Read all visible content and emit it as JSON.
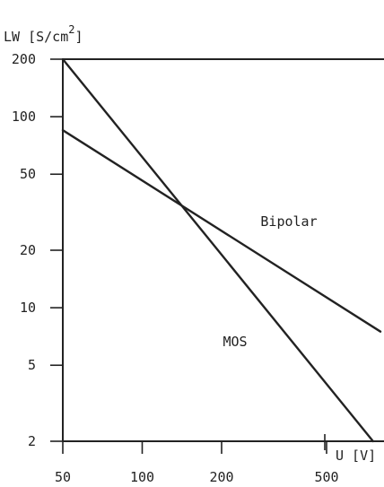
{
  "chart_data": {
    "type": "line",
    "xscale": "log",
    "yscale": "log",
    "xlim": [
      50,
      800
    ],
    "ylim": [
      2,
      200
    ],
    "xticks": [
      50,
      100,
      200,
      500
    ],
    "xtick_labels": [
      "50",
      "100",
      "200",
      "500"
    ],
    "yticks": [
      2,
      5,
      10,
      20,
      50,
      100,
      200
    ],
    "ytick_labels": [
      "2",
      "5",
      "10",
      "20",
      "50",
      "100",
      "200"
    ],
    "ylabel_prefix": "LW [S/cm",
    "ylabel_sup": "2",
    "ylabel_suffix": "]",
    "xlabel": "U [V]",
    "grid": false,
    "series": [
      {
        "name": "MOS",
        "x": [
          50,
          750
        ],
        "y": [
          200,
          2
        ]
      },
      {
        "name": "Bipolar",
        "x": [
          50,
          800
        ],
        "y": [
          85,
          7.5
        ]
      }
    ]
  }
}
